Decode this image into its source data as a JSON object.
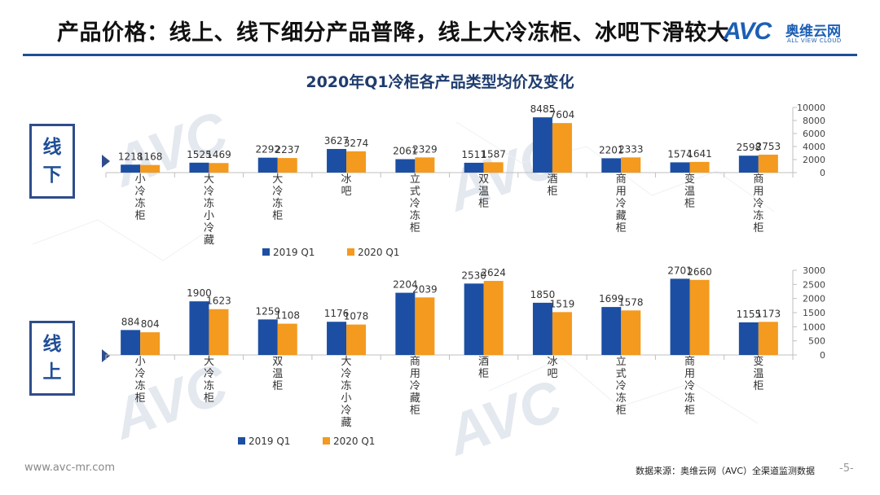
{
  "page": {
    "title": "产品价格：线上、线下细分产品普降，线上大冷冻柜、冰吧下滑较大",
    "logo_mark": "AVC",
    "logo_cn": "奥维云网",
    "logo_en": "ALL VIEW CLOUD",
    "footer_url": "www.avc-mr.com",
    "footer_source": "数据来源：奥维云网（AVC）全渠道监测数据",
    "footer_page": "-5-",
    "chart_title": "2020年Q1冷柜各产品类型均价及变化"
  },
  "colors": {
    "series_2019": "#1c4fa3",
    "series_2020": "#f39a1f",
    "accent": "#1f4e96"
  },
  "side_labels": {
    "offline": [
      "线",
      "下"
    ],
    "online": [
      "线",
      "上"
    ]
  },
  "chart_data": [
    {
      "type": "bar",
      "title": "",
      "channel_label": "线下",
      "categories": [
        "小冷冻柜",
        "大冷冻小冷藏",
        "大冷冻柜",
        "冰吧",
        "立式冷冻柜",
        "双温柜",
        "酒柜",
        "商用冷藏柜",
        "变温柜",
        "商用冷冻柜"
      ],
      "series": [
        {
          "name": "2019 Q1",
          "values": [
            1218,
            1525,
            2292,
            3627,
            2061,
            1511,
            8485,
            2201,
            1574,
            2598
          ]
        },
        {
          "name": "2020 Q1",
          "values": [
            1168,
            1469,
            2237,
            3274,
            2329,
            1587,
            7604,
            2333,
            1641,
            2753
          ]
        }
      ],
      "ylim": [
        0,
        10000
      ],
      "yticks": [
        0,
        2000,
        4000,
        6000,
        8000,
        10000
      ],
      "y_axis_side": "right",
      "legend_position": "bottom"
    },
    {
      "type": "bar",
      "title": "",
      "channel_label": "线上",
      "categories": [
        "小冷冻柜",
        "大冷冻柜",
        "双温柜",
        "大冷冻小冷藏",
        "商用冷藏柜",
        "酒柜",
        "冰吧",
        "立式冷冻柜",
        "商用冷冻柜",
        "变温柜"
      ],
      "series": [
        {
          "name": "2019 Q1",
          "values": [
            884,
            1900,
            1259,
            1176,
            2204,
            2530,
            1850,
            1699,
            2701,
            1155
          ]
        },
        {
          "name": "2020 Q1",
          "values": [
            804,
            1623,
            1108,
            1078,
            2039,
            2624,
            1519,
            1578,
            2660,
            1173
          ]
        }
      ],
      "ylim": [
        0,
        3000
      ],
      "yticks": [
        0,
        500,
        1000,
        1500,
        2000,
        2500,
        3000
      ],
      "y_axis_side": "right",
      "legend_position": "bottom"
    }
  ]
}
